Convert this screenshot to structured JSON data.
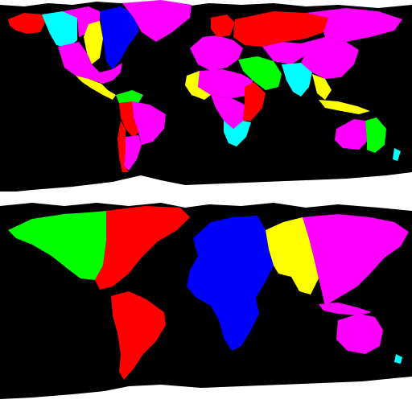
{
  "figure": {
    "background": "#000000",
    "ice_color": "#ffffff"
  },
  "panels": [
    {
      "id": "top",
      "description_visible": "",
      "palette": [
        "#ff0000",
        "#00ff00",
        "#0000ff",
        "#ffff00",
        "#ff00ff",
        "#00ffff"
      ],
      "regions": [
        {
          "name": "alaska-canada-west",
          "color": "#00ffff"
        },
        {
          "name": "alaska",
          "color": "#ff0000"
        },
        {
          "name": "canada-central",
          "color": "#ff00ff"
        },
        {
          "name": "canada-prairie",
          "color": "#ffff00"
        },
        {
          "name": "canada-east",
          "color": "#0000ff"
        },
        {
          "name": "greenland",
          "color": "#ff00ff"
        },
        {
          "name": "usa",
          "color": "#ff00ff"
        },
        {
          "name": "mexico",
          "color": "#ffff00"
        },
        {
          "name": "south-america-north",
          "color": "#00ff00"
        },
        {
          "name": "brazil",
          "color": "#ff00ff"
        },
        {
          "name": "peru-bolivia",
          "color": "#ff0000"
        },
        {
          "name": "argentina",
          "color": "#ff00ff"
        },
        {
          "name": "chile",
          "color": "#ff0000"
        },
        {
          "name": "europe-west",
          "color": "#ff00ff"
        },
        {
          "name": "scandinavia",
          "color": "#ff0000"
        },
        {
          "name": "russia",
          "color": "#ff0000"
        },
        {
          "name": "russia-east",
          "color": "#ff00ff"
        },
        {
          "name": "middle-east",
          "color": "#ff00ff"
        },
        {
          "name": "central-asia",
          "color": "#00ff00"
        },
        {
          "name": "india",
          "color": "#00ffff"
        },
        {
          "name": "china",
          "color": "#ff00ff"
        },
        {
          "name": "southeast-asia",
          "color": "#ffff00"
        },
        {
          "name": "africa-west",
          "color": "#ffff00"
        },
        {
          "name": "africa-north",
          "color": "#ff00ff"
        },
        {
          "name": "africa-central",
          "color": "#ff00ff"
        },
        {
          "name": "africa-east",
          "color": "#ff0000"
        },
        {
          "name": "africa-south",
          "color": "#00ffff"
        },
        {
          "name": "australia-west",
          "color": "#ff00ff"
        },
        {
          "name": "australia-east",
          "color": "#00ff00"
        },
        {
          "name": "indonesia",
          "color": "#ffff00"
        }
      ]
    },
    {
      "id": "bottom",
      "description_visible": "",
      "palette": [
        "#00ff00",
        "#ff0000",
        "#0000ff",
        "#ffff00",
        "#ff00ff"
      ],
      "regions": [
        {
          "name": "north-america-west",
          "color": "#00ff00"
        },
        {
          "name": "north-america-east",
          "color": "#ff0000"
        },
        {
          "name": "south-america",
          "color": "#ff0000"
        },
        {
          "name": "europe-africa",
          "color": "#0000ff"
        },
        {
          "name": "south-asia",
          "color": "#ffff00"
        },
        {
          "name": "east-asia-oceania",
          "color": "#ff00ff"
        }
      ]
    }
  ]
}
